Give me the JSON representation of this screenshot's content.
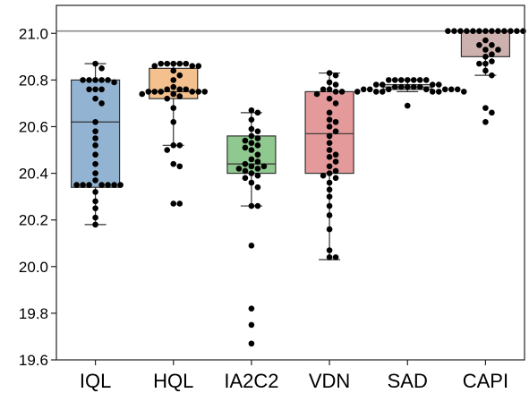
{
  "chart_data": {
    "type": "box-swarm",
    "title": "",
    "xlabel": "",
    "ylabel": "",
    "ylim": [
      19.6,
      21.12
    ],
    "yticks": [
      19.6,
      19.8,
      20.0,
      20.2,
      20.4,
      20.6,
      20.8,
      21.0
    ],
    "ytick_labels": [
      "19.6",
      "19.8",
      "20.0",
      "20.2",
      "20.4",
      "20.6",
      "20.8",
      "21.0"
    ],
    "reference_line": 21.01,
    "grid": false,
    "categories": [
      "IQL",
      "HQL",
      "IA2C2",
      "VDN",
      "SAD",
      "CAPI"
    ],
    "boxes": [
      {
        "name": "IQL",
        "color": "#92b4d2",
        "q1": 20.34,
        "median": 20.62,
        "q3": 20.8,
        "whisker_low": 20.18,
        "whisker_high": 20.87,
        "points": [
          20.87,
          20.85,
          20.8,
          20.8,
          20.8,
          20.8,
          20.8,
          20.79,
          20.76,
          20.76,
          20.76,
          20.72,
          20.7,
          20.62,
          20.58,
          20.55,
          20.52,
          20.48,
          20.44,
          20.4,
          20.37,
          20.35,
          20.35,
          20.35,
          20.35,
          20.35,
          20.35,
          20.35,
          20.32,
          20.28,
          20.25,
          20.21,
          20.18
        ]
      },
      {
        "name": "HQL",
        "color": "#f4c08e",
        "q1": 20.72,
        "median": 20.75,
        "q3": 20.85,
        "whisker_low": 20.52,
        "whisker_high": 20.87,
        "points": [
          20.87,
          20.87,
          20.87,
          20.87,
          20.87,
          20.86,
          20.86,
          20.86,
          20.84,
          20.82,
          20.8,
          20.77,
          20.76,
          20.76,
          20.76,
          20.75,
          20.75,
          20.75,
          20.75,
          20.75,
          20.75,
          20.74,
          20.74,
          20.73,
          20.72,
          20.68,
          20.62,
          20.52,
          20.52,
          20.5,
          20.44,
          20.43,
          20.27,
          20.27
        ]
      },
      {
        "name": "IA2C2",
        "color": "#8fc98f",
        "q1": 20.4,
        "median": 20.44,
        "q3": 20.56,
        "whisker_low": 20.26,
        "whisker_high": 20.66,
        "points": [
          20.67,
          20.66,
          20.63,
          20.59,
          20.58,
          20.56,
          20.55,
          20.54,
          20.53,
          20.52,
          20.51,
          20.5,
          20.48,
          20.46,
          20.45,
          20.44,
          20.43,
          20.43,
          20.42,
          20.42,
          20.41,
          20.4,
          20.39,
          20.38,
          20.36,
          20.34,
          20.26,
          20.26,
          20.09,
          19.82,
          19.75,
          19.67
        ]
      },
      {
        "name": "VDN",
        "color": "#e49a9a",
        "q1": 20.4,
        "median": 20.57,
        "q3": 20.75,
        "whisker_low": 20.03,
        "whisker_high": 20.83,
        "points": [
          20.83,
          20.82,
          20.79,
          20.78,
          20.76,
          20.76,
          20.75,
          20.75,
          20.74,
          20.72,
          20.7,
          20.66,
          20.63,
          20.62,
          20.6,
          20.58,
          20.56,
          20.53,
          20.5,
          20.48,
          20.47,
          20.45,
          20.43,
          20.41,
          20.4,
          20.39,
          20.38,
          20.36,
          20.33,
          20.3,
          20.26,
          20.22,
          20.16,
          20.07,
          20.04,
          20.04
        ]
      },
      {
        "name": "SAD",
        "color": "#d9d9d9",
        "q1": 20.76,
        "median": 20.77,
        "q3": 20.78,
        "whisker_low": 20.75,
        "whisker_high": 20.8,
        "points": [
          20.8,
          20.8,
          20.8,
          20.8,
          20.8,
          20.8,
          20.8,
          20.78,
          20.78,
          20.78,
          20.78,
          20.77,
          20.77,
          20.77,
          20.77,
          20.77,
          20.76,
          20.76,
          20.76,
          20.76,
          20.76,
          20.76,
          20.76,
          20.75,
          20.75,
          20.75,
          20.75,
          20.75,
          20.75,
          20.69
        ]
      },
      {
        "name": "CAPI",
        "color": "#cdb1ae",
        "q1": 20.9,
        "median": 21.01,
        "q3": 21.01,
        "whisker_low": 20.82,
        "whisker_high": 21.01,
        "points": [
          21.01,
          21.01,
          21.01,
          21.01,
          21.01,
          21.01,
          21.01,
          21.01,
          21.01,
          21.01,
          21.01,
          21.01,
          21.01,
          20.97,
          20.95,
          20.95,
          20.93,
          20.93,
          20.91,
          20.9,
          20.88,
          20.87,
          20.87,
          20.84,
          20.82,
          20.68,
          20.66,
          20.62
        ]
      }
    ]
  }
}
